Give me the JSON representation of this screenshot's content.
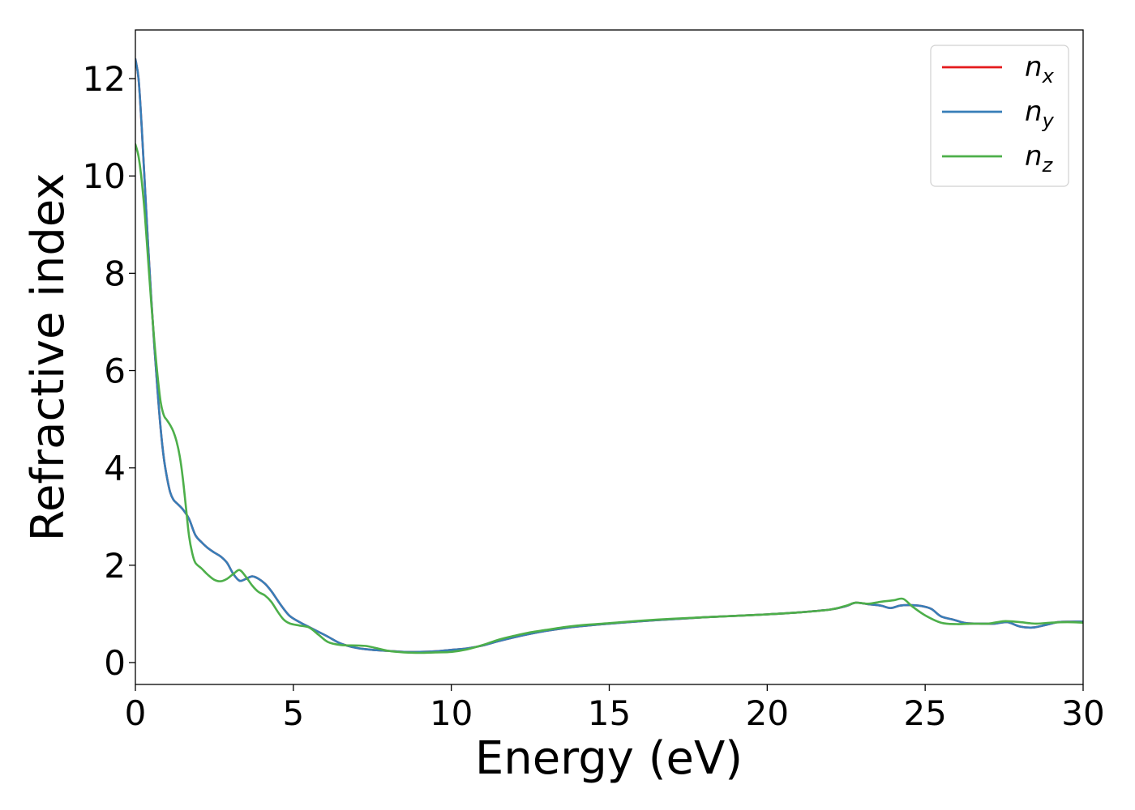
{
  "chart_data": {
    "type": "line",
    "title": "",
    "xlabel": "Energy (eV)",
    "ylabel": "Refractive index",
    "xlim": [
      0,
      30
    ],
    "ylim": [
      -0.45,
      13.0
    ],
    "xticks": [
      0,
      5,
      10,
      15,
      20,
      25,
      30
    ],
    "yticks": [
      0,
      2,
      4,
      6,
      8,
      10,
      12
    ],
    "grid": false,
    "legend_position": "top-right",
    "series": [
      {
        "name": "n",
        "subscript": "x",
        "color": "#e41a1c",
        "points": [
          [
            0,
            12.4
          ],
          [
            0.1,
            12.0
          ],
          [
            0.2,
            11.0
          ],
          [
            0.3,
            9.8
          ],
          [
            0.4,
            8.6
          ],
          [
            0.5,
            7.5
          ],
          [
            0.6,
            6.5
          ],
          [
            0.7,
            5.6
          ],
          [
            0.8,
            4.8
          ],
          [
            0.9,
            4.2
          ],
          [
            1.0,
            3.8
          ],
          [
            1.1,
            3.5
          ],
          [
            1.2,
            3.35
          ],
          [
            1.3,
            3.28
          ],
          [
            1.5,
            3.15
          ],
          [
            1.7,
            2.95
          ],
          [
            1.9,
            2.62
          ],
          [
            2.1,
            2.47
          ],
          [
            2.3,
            2.35
          ],
          [
            2.5,
            2.26
          ],
          [
            2.7,
            2.18
          ],
          [
            2.9,
            2.05
          ],
          [
            3.1,
            1.82
          ],
          [
            3.3,
            1.68
          ],
          [
            3.5,
            1.72
          ],
          [
            3.7,
            1.77
          ],
          [
            3.9,
            1.72
          ],
          [
            4.1,
            1.62
          ],
          [
            4.3,
            1.47
          ],
          [
            4.5,
            1.28
          ],
          [
            4.7,
            1.1
          ],
          [
            4.9,
            0.95
          ],
          [
            5.2,
            0.83
          ],
          [
            5.5,
            0.73
          ],
          [
            5.8,
            0.63
          ],
          [
            6.1,
            0.53
          ],
          [
            6.5,
            0.39
          ],
          [
            7.0,
            0.3
          ],
          [
            7.5,
            0.26
          ],
          [
            8.0,
            0.24
          ],
          [
            8.5,
            0.22
          ],
          [
            9.0,
            0.22
          ],
          [
            9.5,
            0.23
          ],
          [
            10.0,
            0.26
          ],
          [
            10.5,
            0.29
          ],
          [
            11.0,
            0.35
          ],
          [
            11.5,
            0.44
          ],
          [
            12.0,
            0.52
          ],
          [
            12.5,
            0.59
          ],
          [
            13.0,
            0.65
          ],
          [
            13.5,
            0.7
          ],
          [
            14.0,
            0.74
          ],
          [
            15.0,
            0.8
          ],
          [
            16.0,
            0.85
          ],
          [
            17.0,
            0.89
          ],
          [
            18.0,
            0.93
          ],
          [
            19.0,
            0.96
          ],
          [
            20.0,
            0.99
          ],
          [
            21.0,
            1.03
          ],
          [
            22.0,
            1.09
          ],
          [
            22.5,
            1.16
          ],
          [
            22.8,
            1.23
          ],
          [
            23.2,
            1.2
          ],
          [
            23.6,
            1.17
          ],
          [
            23.9,
            1.12
          ],
          [
            24.2,
            1.17
          ],
          [
            24.5,
            1.18
          ],
          [
            24.9,
            1.16
          ],
          [
            25.2,
            1.1
          ],
          [
            25.5,
            0.95
          ],
          [
            25.9,
            0.88
          ],
          [
            26.3,
            0.81
          ],
          [
            26.8,
            0.8
          ],
          [
            27.2,
            0.8
          ],
          [
            27.6,
            0.83
          ],
          [
            28.0,
            0.74
          ],
          [
            28.4,
            0.72
          ],
          [
            28.8,
            0.77
          ],
          [
            29.2,
            0.83
          ],
          [
            29.6,
            0.84
          ],
          [
            30.0,
            0.84
          ]
        ]
      },
      {
        "name": "n",
        "subscript": "y",
        "color": "#377eb8",
        "points": [
          [
            0,
            12.4
          ],
          [
            0.1,
            12.0
          ],
          [
            0.2,
            11.0
          ],
          [
            0.3,
            9.8
          ],
          [
            0.4,
            8.6
          ],
          [
            0.5,
            7.5
          ],
          [
            0.6,
            6.5
          ],
          [
            0.7,
            5.6
          ],
          [
            0.8,
            4.8
          ],
          [
            0.9,
            4.2
          ],
          [
            1.0,
            3.8
          ],
          [
            1.1,
            3.5
          ],
          [
            1.2,
            3.35
          ],
          [
            1.3,
            3.28
          ],
          [
            1.5,
            3.15
          ],
          [
            1.7,
            2.95
          ],
          [
            1.9,
            2.62
          ],
          [
            2.1,
            2.47
          ],
          [
            2.3,
            2.35
          ],
          [
            2.5,
            2.26
          ],
          [
            2.7,
            2.18
          ],
          [
            2.9,
            2.05
          ],
          [
            3.1,
            1.82
          ],
          [
            3.3,
            1.68
          ],
          [
            3.5,
            1.72
          ],
          [
            3.7,
            1.77
          ],
          [
            3.9,
            1.72
          ],
          [
            4.1,
            1.62
          ],
          [
            4.3,
            1.47
          ],
          [
            4.5,
            1.28
          ],
          [
            4.7,
            1.1
          ],
          [
            4.9,
            0.95
          ],
          [
            5.2,
            0.83
          ],
          [
            5.5,
            0.73
          ],
          [
            5.8,
            0.63
          ],
          [
            6.1,
            0.53
          ],
          [
            6.5,
            0.39
          ],
          [
            7.0,
            0.3
          ],
          [
            7.5,
            0.26
          ],
          [
            8.0,
            0.24
          ],
          [
            8.5,
            0.22
          ],
          [
            9.0,
            0.22
          ],
          [
            9.5,
            0.23
          ],
          [
            10.0,
            0.26
          ],
          [
            10.5,
            0.29
          ],
          [
            11.0,
            0.35
          ],
          [
            11.5,
            0.44
          ],
          [
            12.0,
            0.52
          ],
          [
            12.5,
            0.59
          ],
          [
            13.0,
            0.65
          ],
          [
            13.5,
            0.7
          ],
          [
            14.0,
            0.74
          ],
          [
            15.0,
            0.8
          ],
          [
            16.0,
            0.85
          ],
          [
            17.0,
            0.89
          ],
          [
            18.0,
            0.93
          ],
          [
            19.0,
            0.96
          ],
          [
            20.0,
            0.99
          ],
          [
            21.0,
            1.03
          ],
          [
            22.0,
            1.09
          ],
          [
            22.5,
            1.16
          ],
          [
            22.8,
            1.23
          ],
          [
            23.2,
            1.2
          ],
          [
            23.6,
            1.17
          ],
          [
            23.9,
            1.12
          ],
          [
            24.2,
            1.17
          ],
          [
            24.5,
            1.18
          ],
          [
            24.9,
            1.16
          ],
          [
            25.2,
            1.1
          ],
          [
            25.5,
            0.95
          ],
          [
            25.9,
            0.88
          ],
          [
            26.3,
            0.81
          ],
          [
            26.8,
            0.8
          ],
          [
            27.2,
            0.8
          ],
          [
            27.6,
            0.83
          ],
          [
            28.0,
            0.74
          ],
          [
            28.4,
            0.72
          ],
          [
            28.8,
            0.77
          ],
          [
            29.2,
            0.83
          ],
          [
            29.6,
            0.84
          ],
          [
            30.0,
            0.84
          ]
        ]
      },
      {
        "name": "n",
        "subscript": "z",
        "color": "#4daf4a",
        "points": [
          [
            0,
            10.65
          ],
          [
            0.1,
            10.4
          ],
          [
            0.2,
            9.9
          ],
          [
            0.3,
            9.2
          ],
          [
            0.4,
            8.3
          ],
          [
            0.5,
            7.4
          ],
          [
            0.6,
            6.6
          ],
          [
            0.7,
            5.9
          ],
          [
            0.8,
            5.35
          ],
          [
            0.9,
            5.08
          ],
          [
            1.0,
            4.98
          ],
          [
            1.1,
            4.88
          ],
          [
            1.2,
            4.75
          ],
          [
            1.3,
            4.55
          ],
          [
            1.4,
            4.25
          ],
          [
            1.5,
            3.8
          ],
          [
            1.6,
            3.2
          ],
          [
            1.7,
            2.6
          ],
          [
            1.8,
            2.25
          ],
          [
            1.9,
            2.05
          ],
          [
            2.1,
            1.93
          ],
          [
            2.3,
            1.8
          ],
          [
            2.5,
            1.7
          ],
          [
            2.7,
            1.67
          ],
          [
            2.9,
            1.72
          ],
          [
            3.1,
            1.82
          ],
          [
            3.3,
            1.9
          ],
          [
            3.5,
            1.76
          ],
          [
            3.7,
            1.58
          ],
          [
            3.9,
            1.45
          ],
          [
            4.1,
            1.38
          ],
          [
            4.3,
            1.25
          ],
          [
            4.5,
            1.05
          ],
          [
            4.7,
            0.88
          ],
          [
            4.9,
            0.8
          ],
          [
            5.2,
            0.76
          ],
          [
            5.5,
            0.72
          ],
          [
            5.8,
            0.57
          ],
          [
            6.1,
            0.42
          ],
          [
            6.5,
            0.36
          ],
          [
            7.0,
            0.35
          ],
          [
            7.3,
            0.34
          ],
          [
            7.6,
            0.3
          ],
          [
            8.0,
            0.24
          ],
          [
            8.5,
            0.21
          ],
          [
            9.0,
            0.2
          ],
          [
            9.5,
            0.21
          ],
          [
            10.0,
            0.22
          ],
          [
            10.5,
            0.27
          ],
          [
            11.0,
            0.36
          ],
          [
            11.5,
            0.47
          ],
          [
            12.0,
            0.55
          ],
          [
            12.5,
            0.62
          ],
          [
            13.0,
            0.67
          ],
          [
            13.5,
            0.72
          ],
          [
            14.0,
            0.76
          ],
          [
            15.0,
            0.81
          ],
          [
            16.0,
            0.86
          ],
          [
            17.0,
            0.9
          ],
          [
            18.0,
            0.93
          ],
          [
            19.0,
            0.96
          ],
          [
            20.0,
            0.99
          ],
          [
            21.0,
            1.03
          ],
          [
            22.0,
            1.09
          ],
          [
            22.5,
            1.17
          ],
          [
            22.8,
            1.23
          ],
          [
            23.2,
            1.21
          ],
          [
            23.6,
            1.25
          ],
          [
            24.0,
            1.28
          ],
          [
            24.3,
            1.31
          ],
          [
            24.6,
            1.15
          ],
          [
            25.0,
            0.97
          ],
          [
            25.5,
            0.82
          ],
          [
            26.0,
            0.79
          ],
          [
            26.5,
            0.8
          ],
          [
            27.0,
            0.8
          ],
          [
            27.5,
            0.85
          ],
          [
            28.0,
            0.83
          ],
          [
            28.5,
            0.8
          ],
          [
            29.0,
            0.82
          ],
          [
            29.5,
            0.83
          ],
          [
            30.0,
            0.82
          ]
        ]
      }
    ]
  }
}
